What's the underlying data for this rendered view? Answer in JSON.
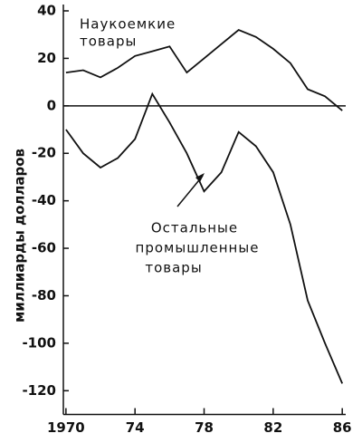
{
  "chart_data": {
    "type": "line",
    "y_label": "миллиарды долларов",
    "x": [
      1970,
      1971,
      1972,
      1973,
      1974,
      1975,
      1976,
      1977,
      1978,
      1979,
      1980,
      1981,
      1982,
      1983,
      1984,
      1985,
      1986
    ],
    "series": [
      {
        "label_lines": [
          "Наукоемкие",
          "товары"
        ],
        "color": "#111111",
        "values": [
          14,
          15,
          12,
          16,
          21,
          23,
          25,
          14,
          20,
          26,
          32,
          29,
          24,
          18,
          7,
          4,
          -2
        ]
      },
      {
        "label_lines": [
          "Остальные",
          "промышленные",
          "товары"
        ],
        "color": "#111111",
        "values": [
          -10,
          -20,
          -26,
          -22,
          -14,
          5,
          -7,
          -20,
          -36,
          -28,
          -11,
          -17,
          -28,
          -50,
          -82,
          -100,
          -117
        ]
      }
    ],
    "xlim": [
      1969.85,
      1986.2
    ],
    "ylim": [
      -130,
      40
    ],
    "xticks": [
      {
        "value": 1970,
        "label": "1970"
      },
      {
        "value": 1974,
        "label": "74"
      },
      {
        "value": 1978,
        "label": "78"
      },
      {
        "value": 1982,
        "label": "82"
      },
      {
        "value": 1986,
        "label": "86"
      }
    ],
    "yticks": [
      40,
      20,
      0,
      -20,
      -40,
      -60,
      -80,
      -100,
      -120
    ]
  }
}
